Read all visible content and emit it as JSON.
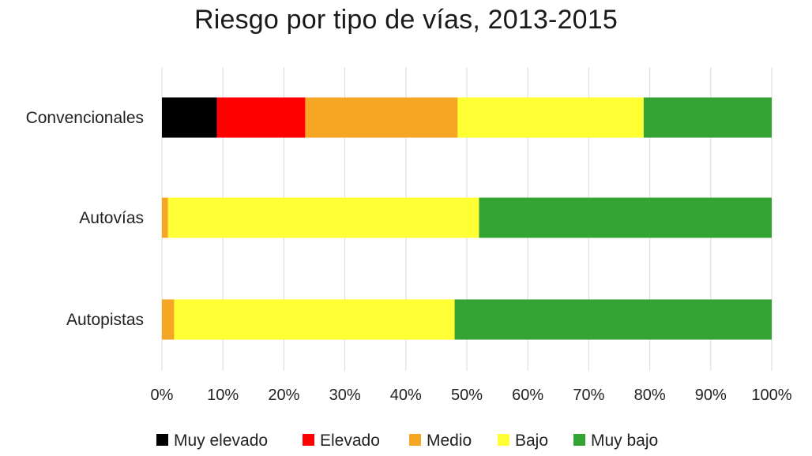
{
  "chart_data": {
    "type": "bar",
    "orientation": "horizontal",
    "stacked": "percent",
    "title": "Riesgo por tipo de vías, 2013-2015",
    "xlabel": "",
    "ylabel": "",
    "xlim": [
      0,
      100
    ],
    "x_ticks": [
      "0%",
      "10%",
      "20%",
      "30%",
      "40%",
      "50%",
      "60%",
      "70%",
      "80%",
      "90%",
      "100%"
    ],
    "grid": "vertical gridlines",
    "legend_position": "bottom",
    "categories": [
      "Convencionales",
      "Autovías",
      "Autopistas"
    ],
    "series": [
      {
        "name": "Muy elevado",
        "color": "#000000",
        "values": [
          9,
          0,
          0
        ]
      },
      {
        "name": "Elevado",
        "color": "#ff0000",
        "values": [
          14.5,
          0,
          0
        ]
      },
      {
        "name": "Medio",
        "color": "#f5a623",
        "values": [
          25,
          1,
          2
        ]
      },
      {
        "name": "Bajo",
        "color": "#ffff33",
        "values": [
          30.5,
          51,
          46
        ]
      },
      {
        "name": "Muy bajo",
        "color": "#33a333",
        "values": [
          21,
          48,
          52
        ]
      }
    ]
  }
}
